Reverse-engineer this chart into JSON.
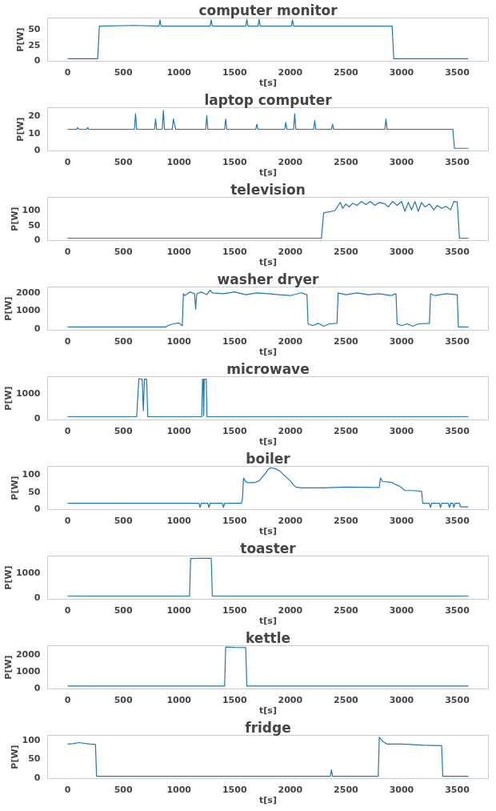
{
  "chart_data": [
    {
      "type": "line",
      "title": "computer monitor",
      "xlabel": "t[s]",
      "ylabel": "P[W]",
      "grid": false,
      "xlim": [
        -180,
        3780
      ],
      "xticks": [
        0,
        500,
        1000,
        1500,
        2000,
        2500,
        3000,
        3500
      ],
      "ylim": [
        -2,
        68
      ],
      "yticks": [
        0,
        25,
        50
      ],
      "series": [
        {
          "color": "#1f77b4",
          "x": [
            0,
            270,
            285,
            600,
            820,
            830,
            840,
            1280,
            1290,
            1300,
            1600,
            1610,
            1620,
            1710,
            1720,
            1730,
            2010,
            2020,
            2030,
            2500,
            2915,
            2930,
            3600
          ],
          "values": [
            2,
            2,
            55,
            56,
            55,
            65,
            55,
            55,
            65,
            55,
            55,
            66,
            55,
            55,
            66,
            55,
            55,
            65,
            55,
            55,
            55,
            2,
            2
          ]
        }
      ]
    },
    {
      "type": "line",
      "title": "laptop computer",
      "xlabel": "t[s]",
      "ylabel": "P[W]",
      "grid": false,
      "xlim": [
        -180,
        3780
      ],
      "xticks": [
        0,
        500,
        1000,
        1500,
        2000,
        2500,
        3000,
        3500
      ],
      "ylim": [
        -0.5,
        24.5
      ],
      "yticks": [
        0,
        10,
        20
      ],
      "series": [
        {
          "color": "#1f77b4",
          "x": [
            0,
            80,
            90,
            100,
            170,
            180,
            190,
            600,
            610,
            620,
            780,
            790,
            800,
            850,
            860,
            870,
            940,
            950,
            960,
            970,
            1240,
            1250,
            1260,
            1410,
            1420,
            1430,
            1690,
            1700,
            1710,
            1950,
            1960,
            1970,
            2030,
            2040,
            2050,
            2210,
            2220,
            2230,
            2370,
            2380,
            2390,
            2850,
            2860,
            2870,
            3460,
            3475,
            3600
          ],
          "values": [
            12,
            12,
            13,
            12,
            12,
            13,
            12,
            12,
            21,
            12,
            12,
            18,
            12,
            12,
            23,
            12,
            12,
            18,
            15,
            12,
            12,
            20,
            12,
            12,
            18,
            12,
            12,
            15,
            12,
            12,
            16,
            12,
            12,
            21,
            12,
            12,
            17,
            12,
            12,
            15,
            12,
            12,
            18,
            12,
            12,
            1,
            1
          ]
        }
      ]
    },
    {
      "type": "line",
      "title": "television",
      "xlabel": "t[s]",
      "ylabel": "P[W]",
      "grid": false,
      "xlim": [
        -180,
        3780
      ],
      "xticks": [
        0,
        500,
        1000,
        1500,
        2000,
        2500,
        3000,
        3500
      ],
      "ylim": [
        -3,
        142
      ],
      "yticks": [
        0,
        50,
        100
      ],
      "series": [
        {
          "color": "#1f77b4",
          "x": [
            0,
            2280,
            2300,
            2400,
            2450,
            2470,
            2500,
            2530,
            2560,
            2600,
            2640,
            2680,
            2720,
            2760,
            2800,
            2850,
            2880,
            2920,
            2960,
            3000,
            3030,
            3060,
            3090,
            3120,
            3150,
            3180,
            3210,
            3250,
            3290,
            3320,
            3360,
            3400,
            3440,
            3470,
            3500,
            3520,
            3600
          ],
          "values": [
            5,
            5,
            90,
            97,
            125,
            105,
            120,
            110,
            122,
            115,
            128,
            118,
            128,
            115,
            125,
            120,
            110,
            128,
            115,
            128,
            95,
            125,
            100,
            128,
            95,
            125,
            110,
            120,
            100,
            115,
            105,
            112,
            100,
            128,
            127,
            5,
            5
          ]
        }
      ]
    },
    {
      "type": "line",
      "title": "washer dryer",
      "xlabel": "t[s]",
      "ylabel": "P[W]",
      "grid": false,
      "xlim": [
        -180,
        3780
      ],
      "xticks": [
        0,
        500,
        1000,
        1500,
        2000,
        2500,
        3000,
        3500
      ],
      "ylim": [
        -100,
        2270
      ],
      "yticks": [
        0,
        1000,
        2000
      ],
      "series": [
        {
          "color": "#1f77b4",
          "x": [
            0,
            880,
            900,
            950,
            1000,
            1030,
            1040,
            1050,
            1100,
            1140,
            1150,
            1160,
            1200,
            1250,
            1280,
            1300,
            1400,
            1500,
            1600,
            1700,
            1800,
            1900,
            2000,
            2100,
            2150,
            2160,
            2200,
            2250,
            2300,
            2350,
            2420,
            2430,
            2500,
            2600,
            2700,
            2800,
            2900,
            2950,
            2960,
            3000,
            3050,
            3100,
            3150,
            3250,
            3260,
            3300,
            3400,
            3500,
            3510,
            3600
          ],
          "values": [
            80,
            80,
            150,
            250,
            300,
            150,
            1900,
            1800,
            2000,
            1900,
            1050,
            1900,
            2000,
            1850,
            2100,
            1950,
            1900,
            2000,
            1850,
            1950,
            1900,
            1850,
            1800,
            1950,
            1850,
            250,
            150,
            280,
            120,
            250,
            280,
            1950,
            1850,
            1950,
            1850,
            1900,
            1800,
            1900,
            250,
            150,
            250,
            120,
            250,
            280,
            1900,
            1800,
            1900,
            1850,
            80,
            80
          ]
        }
      ]
    },
    {
      "type": "line",
      "title": "microwave",
      "xlabel": "t[s]",
      "ylabel": "P[W]",
      "grid": false,
      "xlim": [
        -180,
        3780
      ],
      "xticks": [
        0,
        500,
        1000,
        1500,
        2000,
        2500,
        3000,
        3500
      ],
      "ylim": [
        -70,
        1680
      ],
      "yticks": [
        0,
        1000
      ],
      "series": [
        {
          "color": "#1f77b4",
          "x": [
            0,
            620,
            640,
            670,
            680,
            690,
            710,
            720,
            1205,
            1212,
            1218,
            1222,
            1228,
            1245,
            1252,
            3600
          ],
          "values": [
            60,
            60,
            1600,
            1580,
            300,
            1580,
            1580,
            60,
            60,
            1580,
            1580,
            100,
            1580,
            1580,
            60,
            60
          ]
        }
      ]
    },
    {
      "type": "line",
      "title": "boiler",
      "xlabel": "t[s]",
      "ylabel": "P[W]",
      "grid": false,
      "xlim": [
        -180,
        3780
      ],
      "xticks": [
        0,
        500,
        1000,
        1500,
        2000,
        2500,
        3000,
        3500
      ],
      "ylim": [
        -3,
        122
      ],
      "yticks": [
        0,
        50,
        100
      ],
      "series": [
        {
          "color": "#1f77b4",
          "x": [
            0,
            1180,
            1190,
            1200,
            1260,
            1270,
            1280,
            1390,
            1400,
            1410,
            1560,
            1570,
            1580,
            1600,
            1620,
            1680,
            1720,
            1760,
            1800,
            1820,
            1860,
            1900,
            1950,
            2000,
            2030,
            2050,
            2100,
            2300,
            2500,
            2800,
            2810,
            2830,
            2870,
            2920,
            2940,
            2980,
            3000,
            3030,
            3100,
            3180,
            3190,
            3250,
            3260,
            3270,
            3340,
            3350,
            3360,
            3420,
            3430,
            3440,
            3460,
            3470,
            3480,
            3520,
            3530,
            3600
          ],
          "values": [
            15,
            15,
            3,
            15,
            15,
            3,
            15,
            15,
            3,
            15,
            15,
            25,
            88,
            78,
            75,
            75,
            80,
            95,
            112,
            118,
            116,
            110,
            95,
            80,
            68,
            62,
            60,
            60,
            62,
            61,
            88,
            78,
            77,
            75,
            70,
            65,
            60,
            52,
            52,
            50,
            15,
            15,
            3,
            15,
            15,
            3,
            15,
            15,
            3,
            15,
            15,
            3,
            15,
            15,
            5,
            5
          ]
        }
      ]
    },
    {
      "type": "line",
      "title": "toaster",
      "xlabel": "t[s]",
      "ylabel": "P[W]",
      "grid": false,
      "xlim": [
        -180,
        3780
      ],
      "xticks": [
        0,
        500,
        1000,
        1500,
        2000,
        2500,
        3000,
        3500
      ],
      "ylim": [
        -70,
        1680
      ],
      "yticks": [
        0,
        1000
      ],
      "series": [
        {
          "color": "#1f77b4",
          "x": [
            0,
            1095,
            1105,
            1200,
            1290,
            1300,
            3600
          ],
          "values": [
            60,
            60,
            1580,
            1590,
            1590,
            60,
            60
          ]
        }
      ]
    },
    {
      "type": "line",
      "title": "kettle",
      "xlabel": "t[s]",
      "ylabel": "P[W]",
      "grid": false,
      "xlim": [
        -180,
        3780
      ],
      "xticks": [
        0,
        500,
        1000,
        1500,
        2000,
        2500,
        3000,
        3500
      ],
      "ylim": [
        -90,
        2480
      ],
      "yticks": [
        0,
        1000,
        2000
      ],
      "series": [
        {
          "color": "#1f77b4",
          "x": [
            0,
            1410,
            1420,
            1500,
            1600,
            1610,
            3600
          ],
          "values": [
            80,
            80,
            2400,
            2380,
            2370,
            80,
            80
          ]
        }
      ]
    },
    {
      "type": "line",
      "title": "fridge",
      "xlabel": "t[s]",
      "ylabel": "P[W]",
      "grid": false,
      "xlim": [
        -180,
        3780
      ],
      "xticks": [
        0,
        500,
        1000,
        1500,
        2000,
        2500,
        3000,
        3500
      ],
      "ylim": [
        -3,
        111
      ],
      "yticks": [
        0,
        50,
        100
      ],
      "series": [
        {
          "color": "#1f77b4",
          "x": [
            0,
            50,
            100,
            200,
            250,
            260,
            2360,
            2370,
            2380,
            2790,
            2800,
            2830,
            2870,
            3000,
            3200,
            3360,
            3370,
            3600
          ],
          "values": [
            88,
            89,
            92,
            88,
            87,
            3,
            3,
            20,
            3,
            3,
            106,
            95,
            88,
            88,
            85,
            84,
            3,
            3
          ]
        }
      ]
    }
  ]
}
